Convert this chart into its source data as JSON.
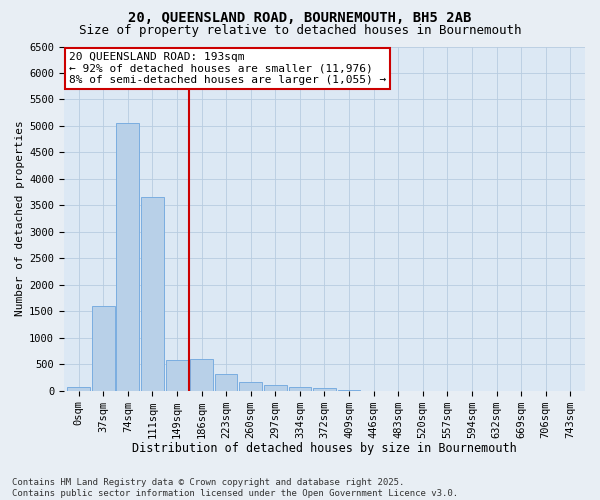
{
  "title1": "20, QUEENSLAND ROAD, BOURNEMOUTH, BH5 2AB",
  "title2": "Size of property relative to detached houses in Bournemouth",
  "xlabel": "Distribution of detached houses by size in Bournemouth",
  "ylabel": "Number of detached properties",
  "footer1": "Contains HM Land Registry data © Crown copyright and database right 2025.",
  "footer2": "Contains public sector information licensed under the Open Government Licence v3.0.",
  "categories": [
    "0sqm",
    "37sqm",
    "74sqm",
    "111sqm",
    "149sqm",
    "186sqm",
    "223sqm",
    "260sqm",
    "297sqm",
    "334sqm",
    "372sqm",
    "409sqm",
    "446sqm",
    "483sqm",
    "520sqm",
    "557sqm",
    "594sqm",
    "632sqm",
    "669sqm",
    "706sqm",
    "743sqm"
  ],
  "values": [
    70,
    1600,
    5050,
    3650,
    580,
    600,
    305,
    165,
    115,
    75,
    40,
    20,
    0,
    0,
    0,
    0,
    0,
    0,
    0,
    0,
    0
  ],
  "bar_color": "#b8d0e8",
  "bar_edge_color": "#7aade0",
  "vline_color": "#cc0000",
  "vline_bin_index": 5,
  "annotation_text": "20 QUEENSLAND ROAD: 193sqm\n← 92% of detached houses are smaller (11,976)\n8% of semi-detached houses are larger (1,055) →",
  "annotation_box_color": "white",
  "annotation_box_edge_color": "#cc0000",
  "ylim": [
    0,
    6500
  ],
  "yticks": [
    0,
    500,
    1000,
    1500,
    2000,
    2500,
    3000,
    3500,
    4000,
    4500,
    5000,
    5500,
    6000,
    6500
  ],
  "bg_color": "#e8eef4",
  "plot_bg_color": "#dce8f4",
  "grid_color": "#b8cce0",
  "title1_fontsize": 10,
  "title2_fontsize": 9,
  "xlabel_fontsize": 8.5,
  "ylabel_fontsize": 8,
  "tick_fontsize": 7.5,
  "annotation_fontsize": 8,
  "footer_fontsize": 6.5
}
